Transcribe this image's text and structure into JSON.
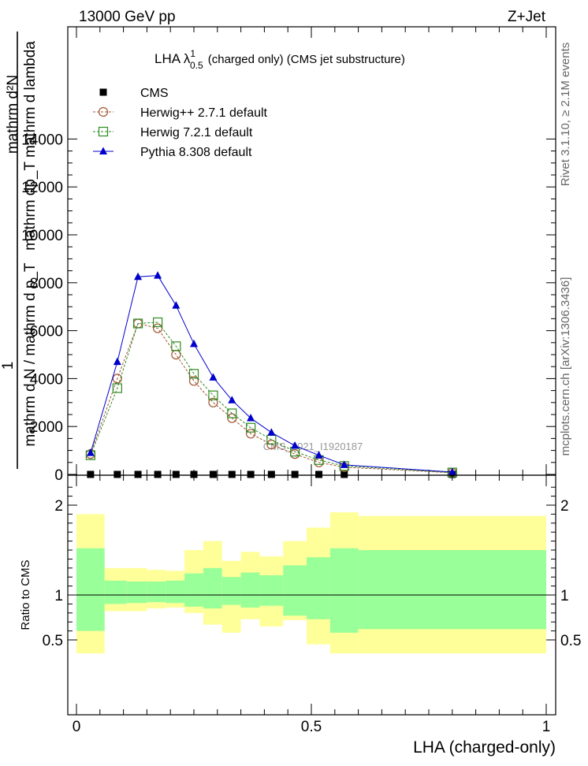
{
  "header": {
    "energy": "13000 GeV pp",
    "process": "Z+Jet",
    "rivet": "Rivet 3.1.10, ≥ 2.1M events",
    "mcplots": "mcplots.cern.ch [arXiv:1306.3436]"
  },
  "chart_data": [
    {
      "type": "line",
      "panel": "main",
      "title": "LHA λ",
      "title_sup": "1",
      "title_sub": "0.5",
      "title_rest": "(charged only) (CMS jet substructure)",
      "watermark": "CMS_2021_I1920187",
      "ylabel_top": "mathrm d²N",
      "ylabel_top2": "mathrm dp_T mathrm d lambda",
      "ylabel_bottom_num": "1",
      "ylabel_bottom": "mathrm d N / mathrm d p_T",
      "xlim": [
        0,
        1
      ],
      "ylim": [
        0,
        14000
      ],
      "y_ticks": [
        0,
        2000,
        4000,
        6000,
        8000,
        10000,
        12000,
        14000
      ],
      "y_tick_labels": [
        "0",
        "2000",
        "4000",
        "6000",
        "8000",
        "10000",
        "12000",
        "14000"
      ],
      "legend_position": "top-left",
      "x": [
        0.03,
        0.087,
        0.131,
        0.173,
        0.212,
        0.25,
        0.291,
        0.331,
        0.371,
        0.415,
        0.465,
        0.516,
        0.57,
        0.8
      ],
      "series": [
        {
          "name": "CMS",
          "color": "#000000",
          "marker": "square",
          "values": [
            0.8,
            0.8,
            0.8,
            0.8,
            0.8,
            0.8,
            0.8,
            0.7,
            0.7,
            0.6,
            0.5,
            0.4,
            0.3,
            0.1
          ]
        },
        {
          "name": "Herwig++ 2.7.1 default",
          "color": "#a0522d",
          "marker": "circle",
          "dashed": true,
          "values": [
            850,
            4000,
            6300,
            6100,
            5000,
            3900,
            3000,
            2350,
            1700,
            1250,
            850,
            500,
            300,
            70
          ]
        },
        {
          "name": "Herwig 7.2.1 default",
          "color": "#2e8b22",
          "marker": "open-square",
          "dashed": true,
          "values": [
            800,
            3600,
            6300,
            6350,
            5350,
            4200,
            3300,
            2550,
            1950,
            1450,
            950,
            600,
            350,
            80
          ]
        },
        {
          "name": "Pythia 8.308 default",
          "color": "#0000cc",
          "marker": "triangle",
          "values": [
            900,
            4700,
            8250,
            8300,
            7050,
            5450,
            4050,
            3100,
            2350,
            1750,
            1200,
            800,
            400,
            100
          ]
        }
      ]
    },
    {
      "type": "area",
      "panel": "ratio",
      "ylabel": "Ratio to CMS",
      "xlabel": "LHA (charged-only)",
      "xlim": [
        0,
        1
      ],
      "ylim": [
        0.35,
        2.3
      ],
      "x_tick_labels": [
        "0",
        "0.5",
        "1"
      ],
      "y_tick_labels": [
        "0.5",
        "1",
        "2"
      ],
      "bin_edges": [
        0.0,
        0.06,
        0.107,
        0.15,
        0.19,
        0.23,
        0.27,
        0.31,
        0.35,
        0.39,
        0.44,
        0.49,
        0.54,
        0.6,
        1.0
      ],
      "outer_band_lo": [
        0.35,
        0.82,
        0.82,
        0.85,
        0.86,
        0.8,
        0.67,
        0.58,
        0.73,
        0.65,
        0.72,
        0.45,
        0.35,
        0.35
      ],
      "outer_band_hi": [
        1.9,
        1.3,
        1.3,
        1.28,
        1.27,
        1.5,
        1.6,
        1.38,
        1.48,
        1.43,
        1.6,
        1.75,
        1.92,
        1.88
      ],
      "inner_band_lo": [
        0.6,
        0.9,
        0.91,
        0.92,
        0.91,
        0.87,
        0.85,
        0.89,
        0.86,
        0.88,
        0.77,
        0.73,
        0.58,
        0.62
      ],
      "inner_band_hi": [
        1.52,
        1.16,
        1.15,
        1.15,
        1.16,
        1.24,
        1.3,
        1.2,
        1.25,
        1.22,
        1.33,
        1.42,
        1.52,
        1.5
      ],
      "band_colors": {
        "outer": "#ffff99",
        "inner": "#99ff99"
      }
    }
  ]
}
